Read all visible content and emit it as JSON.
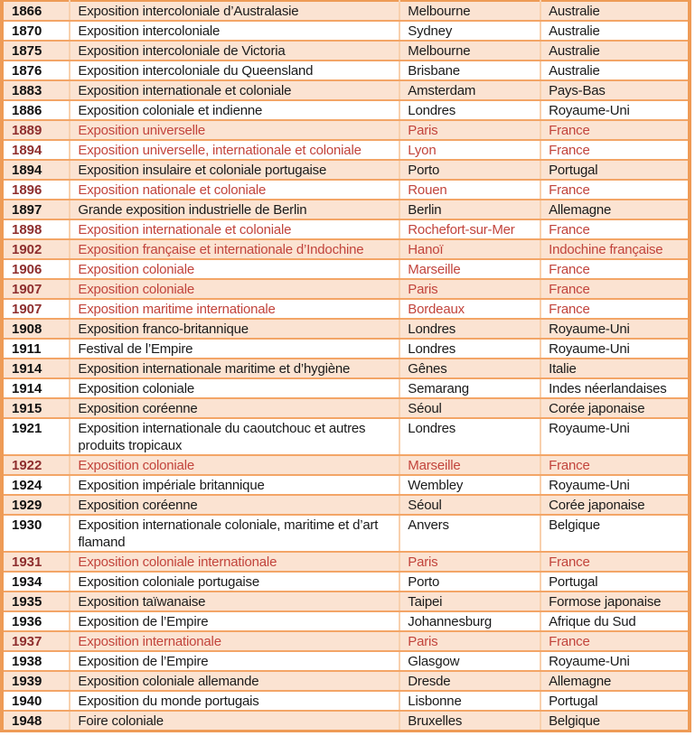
{
  "table": {
    "name": "expositions-coloniales-table",
    "columns": [
      "year",
      "name",
      "city",
      "country"
    ],
    "rows": [
      {
        "year": "1866",
        "name": "Exposition intercoloniale d’Australasie",
        "city": "Melbourne",
        "country": "Australie",
        "red": false
      },
      {
        "year": "1870",
        "name": "Exposition intercoloniale",
        "city": "Sydney",
        "country": "Australie",
        "red": false
      },
      {
        "year": "1875",
        "name": "Exposition intercoloniale de Victoria",
        "city": "Melbourne",
        "country": "Australie",
        "red": false
      },
      {
        "year": "1876",
        "name": "Exposition intercoloniale du Queensland",
        "city": "Brisbane",
        "country": "Australie",
        "red": false
      },
      {
        "year": "1883",
        "name": "Exposition internationale et coloniale",
        "city": "Amsterdam",
        "country": "Pays-Bas",
        "red": false
      },
      {
        "year": "1886",
        "name": "Exposition coloniale et indienne",
        "city": "Londres",
        "country": "Royaume-Uni",
        "red": false
      },
      {
        "year": "1889",
        "name": "Exposition universelle",
        "city": "Paris",
        "country": "France",
        "red": true
      },
      {
        "year": "1894",
        "name": "Exposition universelle, internationale et coloniale",
        "city": "Lyon",
        "country": "France",
        "red": true
      },
      {
        "year": "1894",
        "name": "Exposition insulaire et coloniale portugaise",
        "city": "Porto",
        "country": "Portugal",
        "red": false
      },
      {
        "year": "1896",
        "name": "Exposition nationale et coloniale",
        "city": "Rouen",
        "country": "France",
        "red": true
      },
      {
        "year": "1897",
        "name": "Grande exposition industrielle de Berlin",
        "city": "Berlin",
        "country": "Allemagne",
        "red": false
      },
      {
        "year": "1898",
        "name": "Exposition internationale et coloniale",
        "city": "Rochefort-sur-Mer",
        "country": "France",
        "red": true
      },
      {
        "year": "1902",
        "name": "Exposition française et internationale d’Indochine",
        "city": "Hanoï",
        "country": "Indochine française",
        "red": true
      },
      {
        "year": "1906",
        "name": "Exposition coloniale",
        "city": "Marseille",
        "country": "France",
        "red": true
      },
      {
        "year": "1907",
        "name": "Exposition coloniale",
        "city": "Paris",
        "country": "France",
        "red": true
      },
      {
        "year": "1907",
        "name": "Exposition maritime internationale",
        "city": "Bordeaux",
        "country": "France",
        "red": true
      },
      {
        "year": "1908",
        "name": "Exposition franco-britannique",
        "city": "Londres",
        "country": "Royaume-Uni",
        "red": false
      },
      {
        "year": "1911",
        "name": "Festival de l’Empire",
        "city": "Londres",
        "country": "Royaume-Uni",
        "red": false
      },
      {
        "year": "1914",
        "name": "Exposition internationale maritime et d’hygiène",
        "city": "Gênes",
        "country": "Italie",
        "red": false
      },
      {
        "year": "1914",
        "name": "Exposition coloniale",
        "city": "Semarang",
        "country": "Indes néerlandaises",
        "red": false
      },
      {
        "year": "1915",
        "name": "Exposition coréenne",
        "city": "Séoul",
        "country": "Corée japonaise",
        "red": false
      },
      {
        "year": "1921",
        "name": "Exposition internationale du caoutchouc et autres produits tropicaux",
        "city": "Londres",
        "country": "Royaume-Uni",
        "red": false
      },
      {
        "year": "1922",
        "name": "Exposition coloniale",
        "city": "Marseille",
        "country": "France",
        "red": true
      },
      {
        "year": "1924",
        "name": "Exposition impériale britannique",
        "city": "Wembley",
        "country": "Royaume-Uni",
        "red": false
      },
      {
        "year": "1929",
        "name": "Exposition coréenne",
        "city": "Séoul",
        "country": "Corée japonaise",
        "red": false
      },
      {
        "year": "1930",
        "name": "Exposition internationale coloniale, maritime et d’art flamand",
        "city": "Anvers",
        "country": "Belgique",
        "red": false
      },
      {
        "year": "1931",
        "name": "Exposition coloniale internationale",
        "city": "Paris",
        "country": "France",
        "red": true
      },
      {
        "year": "1934",
        "name": "Exposition coloniale portugaise",
        "city": "Porto",
        "country": "Portugal",
        "red": false
      },
      {
        "year": "1935",
        "name": "Exposition taïwanaise",
        "city": "Taipei",
        "country": "Formose japonaise",
        "red": false
      },
      {
        "year": "1936",
        "name": "Exposition de l’Empire",
        "city": "Johannesburg",
        "country": "Afrique du Sud",
        "red": false
      },
      {
        "year": "1937",
        "name": "Exposition internationale",
        "city": "Paris",
        "country": "France",
        "red": true
      },
      {
        "year": "1938",
        "name": "Exposition de l’Empire",
        "city": "Glasgow",
        "country": "Royaume-Uni",
        "red": false
      },
      {
        "year": "1939",
        "name": "Exposition coloniale allemande",
        "city": "Dresde",
        "country": "Allemagne",
        "red": false
      },
      {
        "year": "1940",
        "name": "Exposition du monde portugais",
        "city": "Lisbonne",
        "country": "Portugal",
        "red": false
      },
      {
        "year": "1948",
        "name": "Foire coloniale",
        "city": "Bruxelles",
        "country": "Belgique",
        "red": false
      }
    ]
  },
  "colors": {
    "band_background": "#fbe3d2",
    "plain_background": "#ffffff",
    "outer_border": "#ee9b56",
    "row_border": "#f3a567",
    "column_border": "#f8d0ad",
    "red_text": "#c2443c",
    "red_year_text": "#8e2e2e",
    "black_text": "#1a1a1a"
  }
}
